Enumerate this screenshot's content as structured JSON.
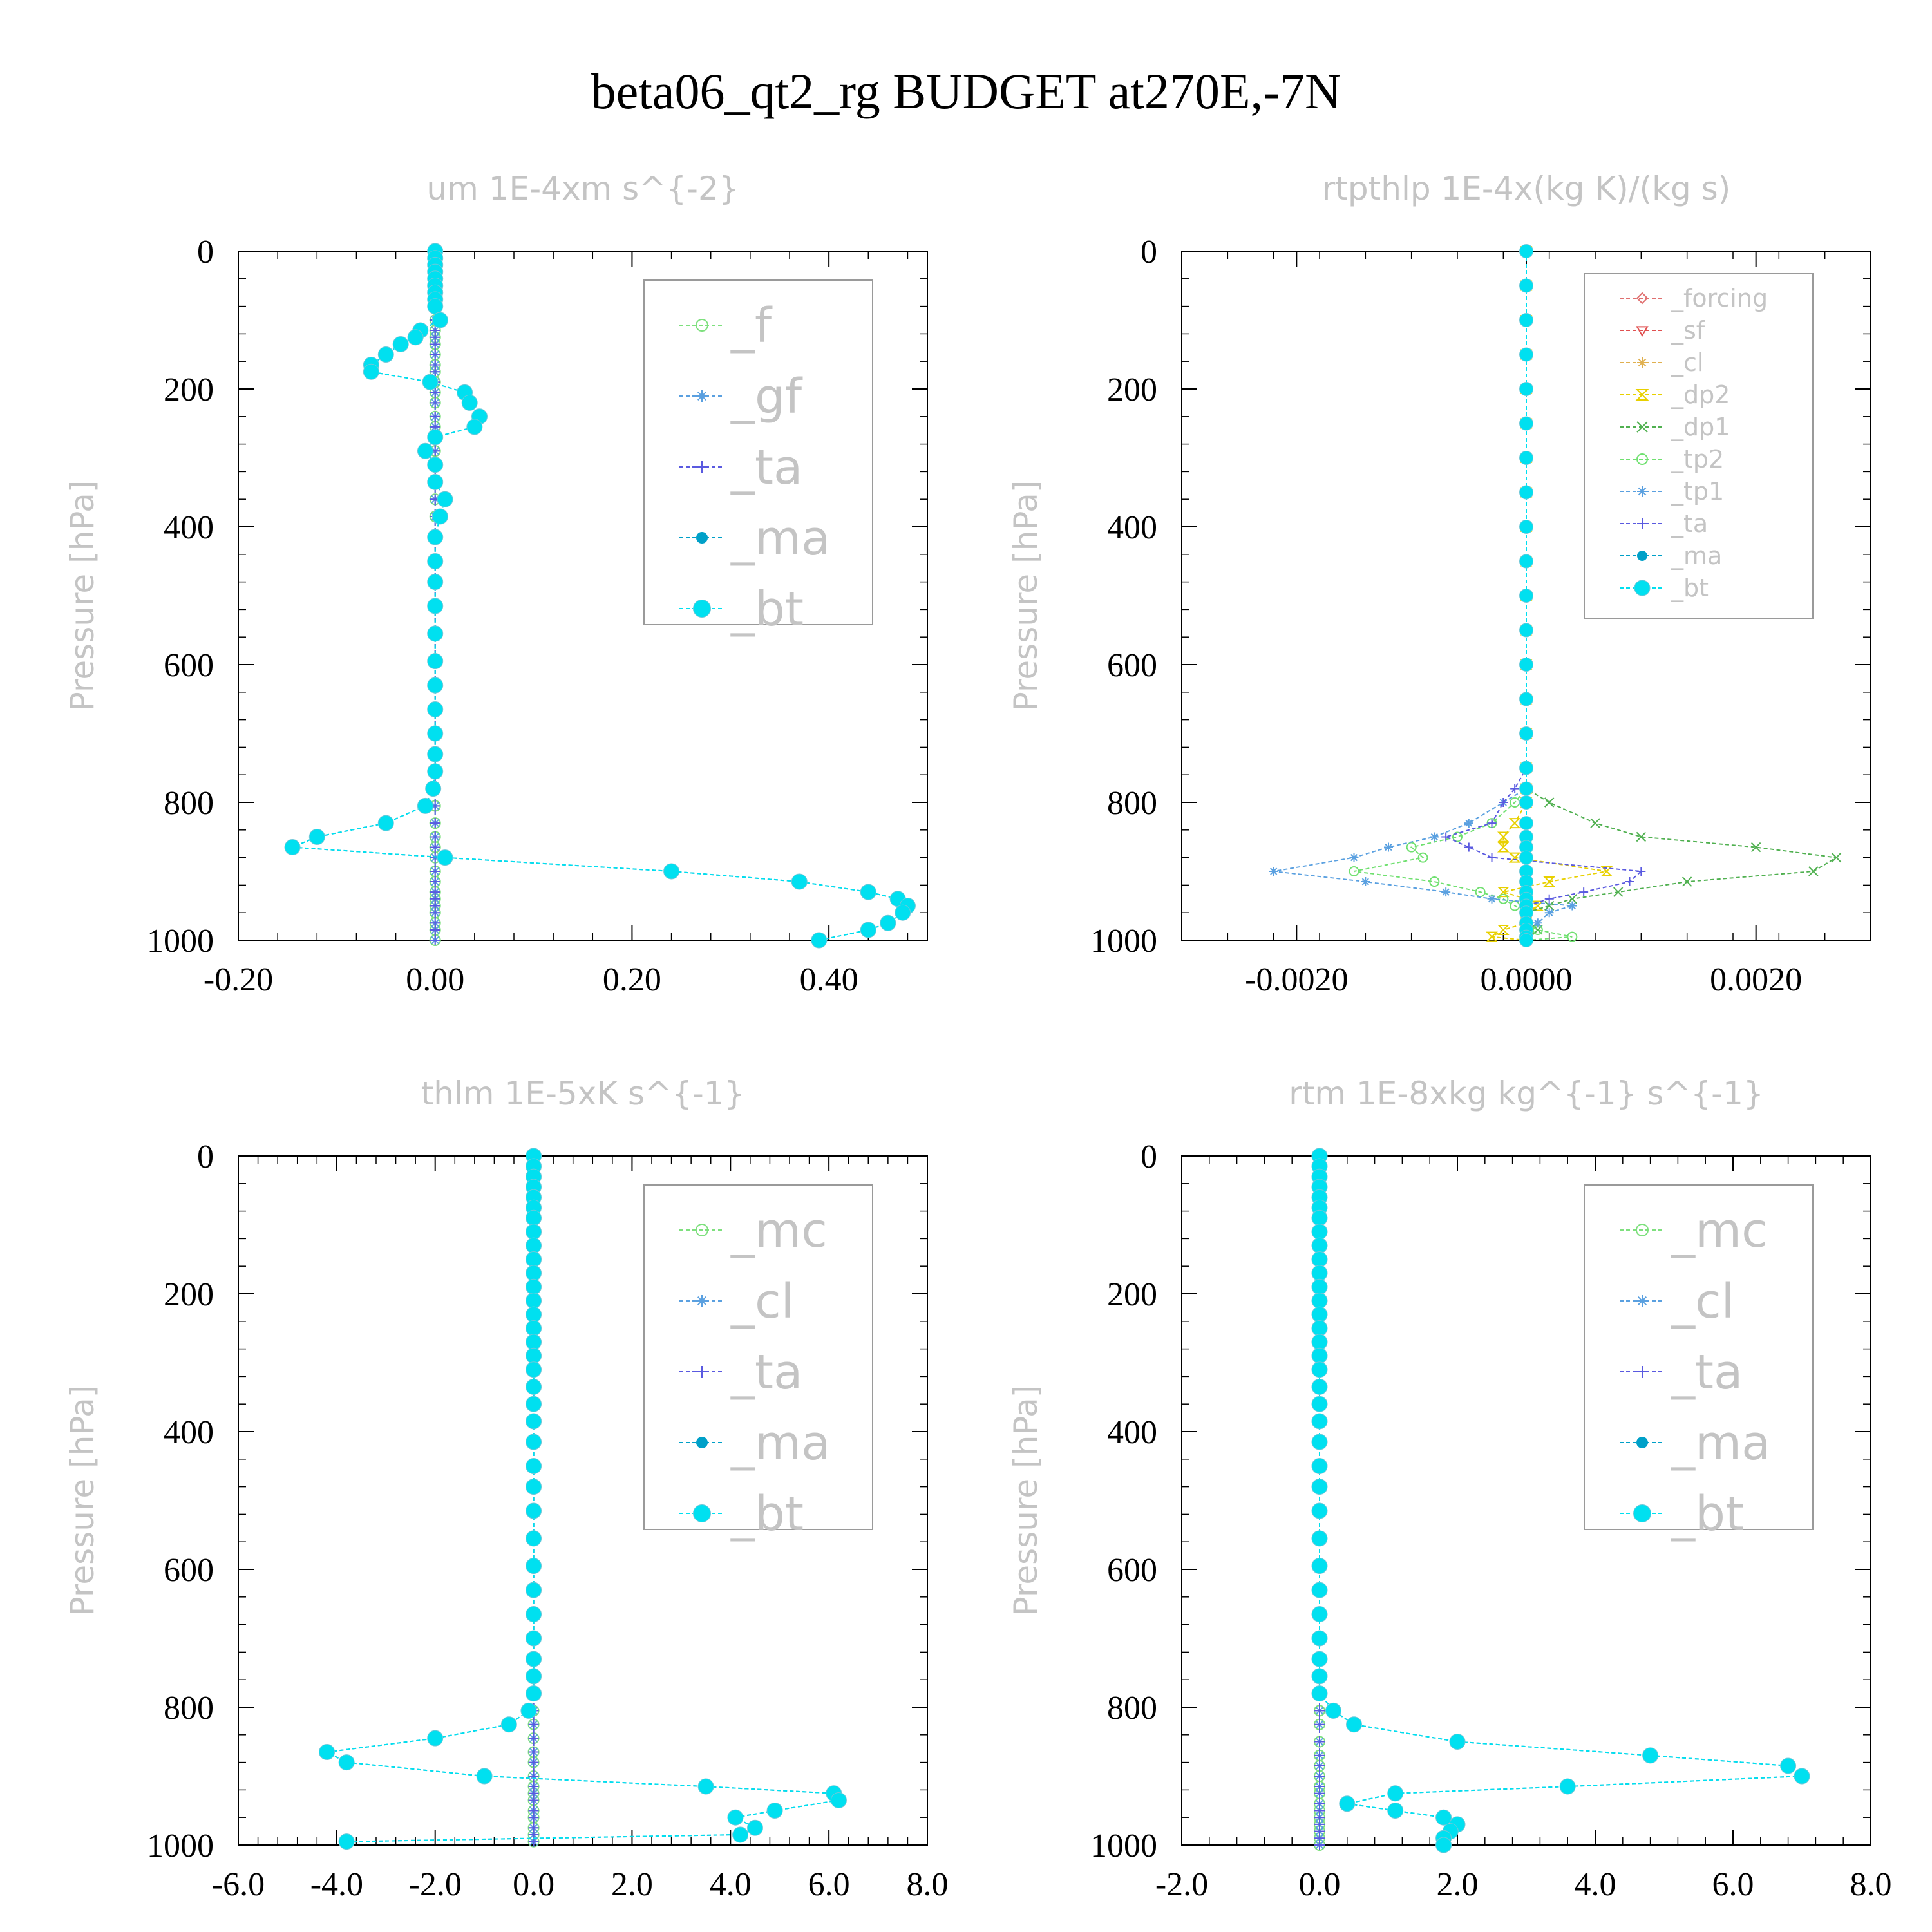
{
  "figure": {
    "title": "beta06_qt2_rg  BUDGET at270E,-7N"
  },
  "chart_data": [
    {
      "type": "line",
      "title": "um   1E-4xm s^{-2}",
      "ylabel": "Pressure [hPa]",
      "xlim": [
        -0.2,
        0.5
      ],
      "ylim": [
        1000,
        0
      ],
      "xticks": [
        -0.2,
        0.0,
        0.2,
        0.4
      ],
      "xtick_labels": [
        "-0.20",
        "0.00",
        "0.20",
        "0.40"
      ],
      "yticks": [
        0,
        200,
        400,
        600,
        800,
        1000
      ],
      "ytick_labels": [
        "0",
        "200",
        "400",
        "600",
        "800",
        "1000"
      ],
      "legend_position": "top-right",
      "legend_size": "big",
      "legend": [
        "_f",
        "_gf",
        "_ta",
        "_ma",
        "_bt"
      ],
      "series_colors": [
        "#7ee07e",
        "#5aa0e0",
        "#5a5ae0",
        "#00a0c8",
        "#00e0f0"
      ],
      "levels": [
        0,
        10,
        20,
        30,
        40,
        50,
        60,
        70,
        80,
        100,
        115,
        125,
        135,
        150,
        165,
        175,
        190,
        205,
        220,
        240,
        255,
        270,
        290,
        310,
        335,
        360,
        385,
        415,
        450,
        480,
        515,
        555,
        595,
        630,
        665,
        700,
        730,
        755,
        780,
        805,
        830,
        850,
        865,
        880,
        900,
        915,
        930,
        940,
        950,
        960,
        975,
        985,
        1000
      ],
      "series": [
        {
          "name": "_f",
          "values": [
            0.0
          ]
        },
        {
          "name": "_gf",
          "values": [
            0.0
          ]
        },
        {
          "name": "_ta",
          "values": [
            0.0
          ]
        },
        {
          "name": "_ma",
          "values": [
            0.0,
            0.0,
            0.0,
            0.0,
            0.0,
            0.0,
            0.0,
            0.0,
            0.0,
            0.005,
            -0.015,
            -0.02,
            -0.035,
            -0.05,
            -0.065,
            -0.065,
            -0.005,
            0.03,
            0.035,
            0.045,
            0.04,
            0.0,
            -0.01,
            0.0,
            0.0,
            0.01,
            0.005,
            0.0,
            0.0,
            0.0,
            0.0,
            0.0,
            0.0,
            0.0,
            0.0,
            0.0,
            0.0,
            0.0,
            -0.002,
            -0.01,
            -0.05,
            -0.12,
            -0.145,
            0.01,
            0.24,
            0.37,
            0.44,
            0.47,
            0.48,
            0.475,
            0.46,
            0.44,
            0.39
          ]
        },
        {
          "name": "_bt",
          "values": [
            0.0,
            0.0,
            0.0,
            0.0,
            0.0,
            0.0,
            0.0,
            0.0,
            0.0,
            0.005,
            -0.015,
            -0.02,
            -0.035,
            -0.05,
            -0.065,
            -0.065,
            -0.005,
            0.03,
            0.035,
            0.045,
            0.04,
            0.0,
            -0.01,
            0.0,
            0.0,
            0.01,
            0.005,
            0.0,
            0.0,
            0.0,
            0.0,
            0.0,
            0.0,
            0.0,
            0.0,
            0.0,
            0.0,
            0.0,
            -0.002,
            -0.01,
            -0.05,
            -0.12,
            -0.145,
            0.01,
            0.24,
            0.37,
            0.44,
            0.47,
            0.48,
            0.475,
            0.46,
            0.44,
            0.39
          ]
        }
      ]
    },
    {
      "type": "line",
      "title": "rtpthlp   1E-4x(kg K)/(kg s)",
      "ylabel": "Pressure [hPa]",
      "xlim": [
        -0.003,
        0.003
      ],
      "ylim": [
        1000,
        0
      ],
      "xticks": [
        -0.002,
        0.0,
        0.002
      ],
      "xtick_labels": [
        "-0.0020",
        "0.0000",
        "0.0020"
      ],
      "yticks": [
        0,
        200,
        400,
        600,
        800,
        1000
      ],
      "ytick_labels": [
        "0",
        "200",
        "400",
        "600",
        "800",
        "1000"
      ],
      "legend_position": "top-right",
      "legend_size": "small",
      "legend": [
        "_forcing",
        "_sf",
        "_cl",
        "_dp2",
        "_dp1",
        "_tp2",
        "_tp1",
        "_ta",
        "_ma",
        "_bt"
      ],
      "series_colors": [
        "#e07070",
        "#e05050",
        "#e0b050",
        "#e8d000",
        "#50b050",
        "#70e070",
        "#5aa0e0",
        "#5a5ae0",
        "#00a0c8",
        "#00e0f0"
      ],
      "levels": [
        0,
        50,
        100,
        150,
        200,
        250,
        300,
        350,
        400,
        450,
        500,
        550,
        600,
        650,
        700,
        750,
        780,
        800,
        830,
        850,
        865,
        880,
        900,
        915,
        930,
        940,
        950,
        960,
        975,
        985,
        995,
        1000
      ],
      "series": [
        {
          "name": "_forcing",
          "values": [
            0.0
          ]
        },
        {
          "name": "_sf",
          "values": [
            0.0
          ]
        },
        {
          "name": "_cl",
          "values": [
            0.0
          ]
        },
        {
          "name": "_dp2",
          "values": [
            0,
            0,
            0,
            0,
            0,
            0,
            0,
            0,
            0,
            0,
            0,
            0,
            0,
            0,
            0,
            0,
            0,
            0,
            -0.0001,
            -0.0002,
            -0.0002,
            -0.0001,
            0.0007,
            0.0002,
            -0.0002,
            0.0,
            0.0001,
            0.0,
            0.0,
            -0.0002,
            -0.0003,
            0.0
          ]
        },
        {
          "name": "_dp1",
          "values": [
            0,
            0,
            0,
            0,
            0,
            0,
            0,
            0,
            0,
            0,
            0,
            0,
            0,
            0,
            0,
            0,
            0.0,
            0.0002,
            0.0006,
            0.001,
            0.002,
            0.0027,
            0.0025,
            0.0014,
            0.0008,
            0.0004,
            0.0002,
            0.0,
            0.0,
            0.0001,
            0.0,
            0.0
          ]
        },
        {
          "name": "_tp2",
          "values": [
            0,
            0,
            0,
            0,
            0,
            0,
            0,
            0,
            0,
            0,
            0,
            0,
            0,
            0,
            0,
            0,
            0.0,
            -0.0001,
            -0.0003,
            -0.0006,
            -0.001,
            -0.0009,
            -0.0015,
            -0.0008,
            -0.0004,
            -0.0002,
            -0.0001,
            0.0,
            0.0,
            0.0001,
            0.0004,
            0.0
          ]
        },
        {
          "name": "_tp1",
          "values": [
            0,
            0,
            0,
            0,
            0,
            0,
            0,
            0,
            0,
            0,
            0,
            0,
            0,
            0,
            0,
            0,
            0.0,
            -0.0002,
            -0.0005,
            -0.0008,
            -0.0012,
            -0.0015,
            -0.0022,
            -0.0014,
            -0.0007,
            -0.0003,
            0.0004,
            0.0002,
            0.0001,
            0.0,
            0.0,
            0.0
          ]
        },
        {
          "name": "_ta",
          "values": [
            0,
            0,
            0,
            0,
            0,
            0,
            0,
            0,
            0,
            0,
            0,
            0,
            0,
            0,
            0,
            0,
            -0.0001,
            -0.0002,
            -0.0003,
            -0.0007,
            -0.0005,
            -0.0003,
            0.001,
            0.0009,
            0.0005,
            0.0002,
            0.0,
            0.0,
            0.0,
            0.0,
            0.0,
            0.0
          ]
        },
        {
          "name": "_ma",
          "values": [
            0.0
          ]
        },
        {
          "name": "_bt",
          "values": [
            0.0
          ]
        }
      ]
    },
    {
      "type": "line",
      "title": "thlm   1E-5xK s^{-1}",
      "ylabel": "Pressure [hPa]",
      "xlim": [
        -6.0,
        8.0
      ],
      "ylim": [
        1000,
        0
      ],
      "xticks": [
        -6,
        -4,
        -2,
        0,
        2,
        4,
        6,
        8
      ],
      "xtick_labels": [
        "-6.0",
        "-4.0",
        "-2.0",
        "0.0",
        "2.0",
        "4.0",
        "6.0",
        "8.0"
      ],
      "yticks": [
        0,
        200,
        400,
        600,
        800,
        1000
      ],
      "ytick_labels": [
        "0",
        "200",
        "400",
        "600",
        "800",
        "1000"
      ],
      "legend_position": "top-right",
      "legend_size": "big",
      "legend": [
        "_mc",
        "_cl",
        "_ta",
        "_ma",
        "_bt"
      ],
      "series_colors": [
        "#7ee07e",
        "#5aa0e0",
        "#5a5ae0",
        "#00a0c8",
        "#00e0f0"
      ],
      "levels": [
        0,
        15,
        30,
        45,
        60,
        75,
        90,
        110,
        130,
        150,
        170,
        190,
        210,
        230,
        250,
        270,
        290,
        310,
        335,
        360,
        385,
        415,
        450,
        480,
        515,
        555,
        595,
        630,
        665,
        700,
        730,
        755,
        780,
        805,
        825,
        845,
        865,
        880,
        900,
        915,
        925,
        935,
        950,
        960,
        975,
        985,
        995
      ],
      "series": [
        {
          "name": "_mc",
          "values": [
            0.0
          ]
        },
        {
          "name": "_cl",
          "values": [
            0.0
          ]
        },
        {
          "name": "_ta",
          "values": [
            0.0
          ]
        },
        {
          "name": "_ma",
          "values": [
            0,
            0,
            0,
            0,
            0,
            0,
            0,
            0,
            0,
            0,
            0,
            0,
            0,
            0,
            0,
            0,
            0,
            0,
            0,
            0,
            0,
            0,
            0,
            0,
            0,
            0,
            0,
            0,
            0,
            0,
            0,
            0,
            0,
            -0.1,
            -0.5,
            -2.0,
            -4.2,
            -3.8,
            -1.0,
            3.5,
            6.1,
            6.2,
            4.9,
            4.1,
            4.5,
            4.2,
            -3.8
          ]
        },
        {
          "name": "_bt",
          "values": [
            0,
            0,
            0,
            0,
            0,
            0,
            0,
            0,
            0,
            0,
            0,
            0,
            0,
            0,
            0,
            0,
            0,
            0,
            0,
            0,
            0,
            0,
            0,
            0,
            0,
            0,
            0,
            0,
            0,
            0,
            0,
            0,
            0,
            -0.1,
            -0.5,
            -2.0,
            -4.2,
            -3.8,
            -1.0,
            3.5,
            6.1,
            6.2,
            4.9,
            4.1,
            4.5,
            4.2,
            -3.8
          ]
        }
      ]
    },
    {
      "type": "line",
      "title": "rtm   1E-8xkg kg^{-1} s^{-1}",
      "ylabel": "Pressure [hPa]",
      "xlim": [
        -2.0,
        8.0
      ],
      "ylim": [
        1000,
        0
      ],
      "xticks": [
        -2,
        0,
        2,
        4,
        6,
        8
      ],
      "xtick_labels": [
        "-2.0",
        "0.0",
        "2.0",
        "4.0",
        "6.0",
        "8.0"
      ],
      "yticks": [
        0,
        200,
        400,
        600,
        800,
        1000
      ],
      "ytick_labels": [
        "0",
        "200",
        "400",
        "600",
        "800",
        "1000"
      ],
      "legend_position": "top-right",
      "legend_size": "big",
      "legend": [
        "_mc",
        "_cl",
        "_ta",
        "_ma",
        "_bt"
      ],
      "series_colors": [
        "#7ee07e",
        "#5aa0e0",
        "#5a5ae0",
        "#00a0c8",
        "#00e0f0"
      ],
      "levels": [
        0,
        15,
        30,
        45,
        60,
        75,
        90,
        110,
        130,
        150,
        170,
        190,
        210,
        230,
        250,
        270,
        290,
        310,
        335,
        360,
        385,
        415,
        450,
        480,
        515,
        555,
        595,
        630,
        665,
        700,
        730,
        755,
        780,
        805,
        825,
        850,
        870,
        885,
        900,
        915,
        925,
        940,
        950,
        960,
        970,
        980,
        990,
        1000
      ],
      "series": [
        {
          "name": "_mc",
          "values": [
            0.0
          ]
        },
        {
          "name": "_cl",
          "values": [
            0.0
          ]
        },
        {
          "name": "_ta",
          "values": [
            0.0
          ]
        },
        {
          "name": "_ma",
          "values": [
            0,
            0,
            0,
            0,
            0,
            0,
            0,
            0,
            0,
            0,
            0,
            0,
            0,
            0,
            0,
            0,
            0,
            0,
            0,
            0,
            0,
            0,
            0,
            0,
            0,
            0,
            0,
            0,
            0,
            0,
            0,
            0,
            0.0,
            0.2,
            0.5,
            2.0,
            4.8,
            6.8,
            7.0,
            3.6,
            1.1,
            0.4,
            1.1,
            1.8,
            2.0,
            1.9,
            1.8,
            1.8
          ]
        },
        {
          "name": "_bt",
          "values": [
            0,
            0,
            0,
            0,
            0,
            0,
            0,
            0,
            0,
            0,
            0,
            0,
            0,
            0,
            0,
            0,
            0,
            0,
            0,
            0,
            0,
            0,
            0,
            0,
            0,
            0,
            0,
            0,
            0,
            0,
            0,
            0,
            0.0,
            0.2,
            0.5,
            2.0,
            4.8,
            6.8,
            7.0,
            3.6,
            1.1,
            0.4,
            1.1,
            1.8,
            2.0,
            1.9,
            1.8,
            1.8
          ]
        }
      ]
    }
  ]
}
